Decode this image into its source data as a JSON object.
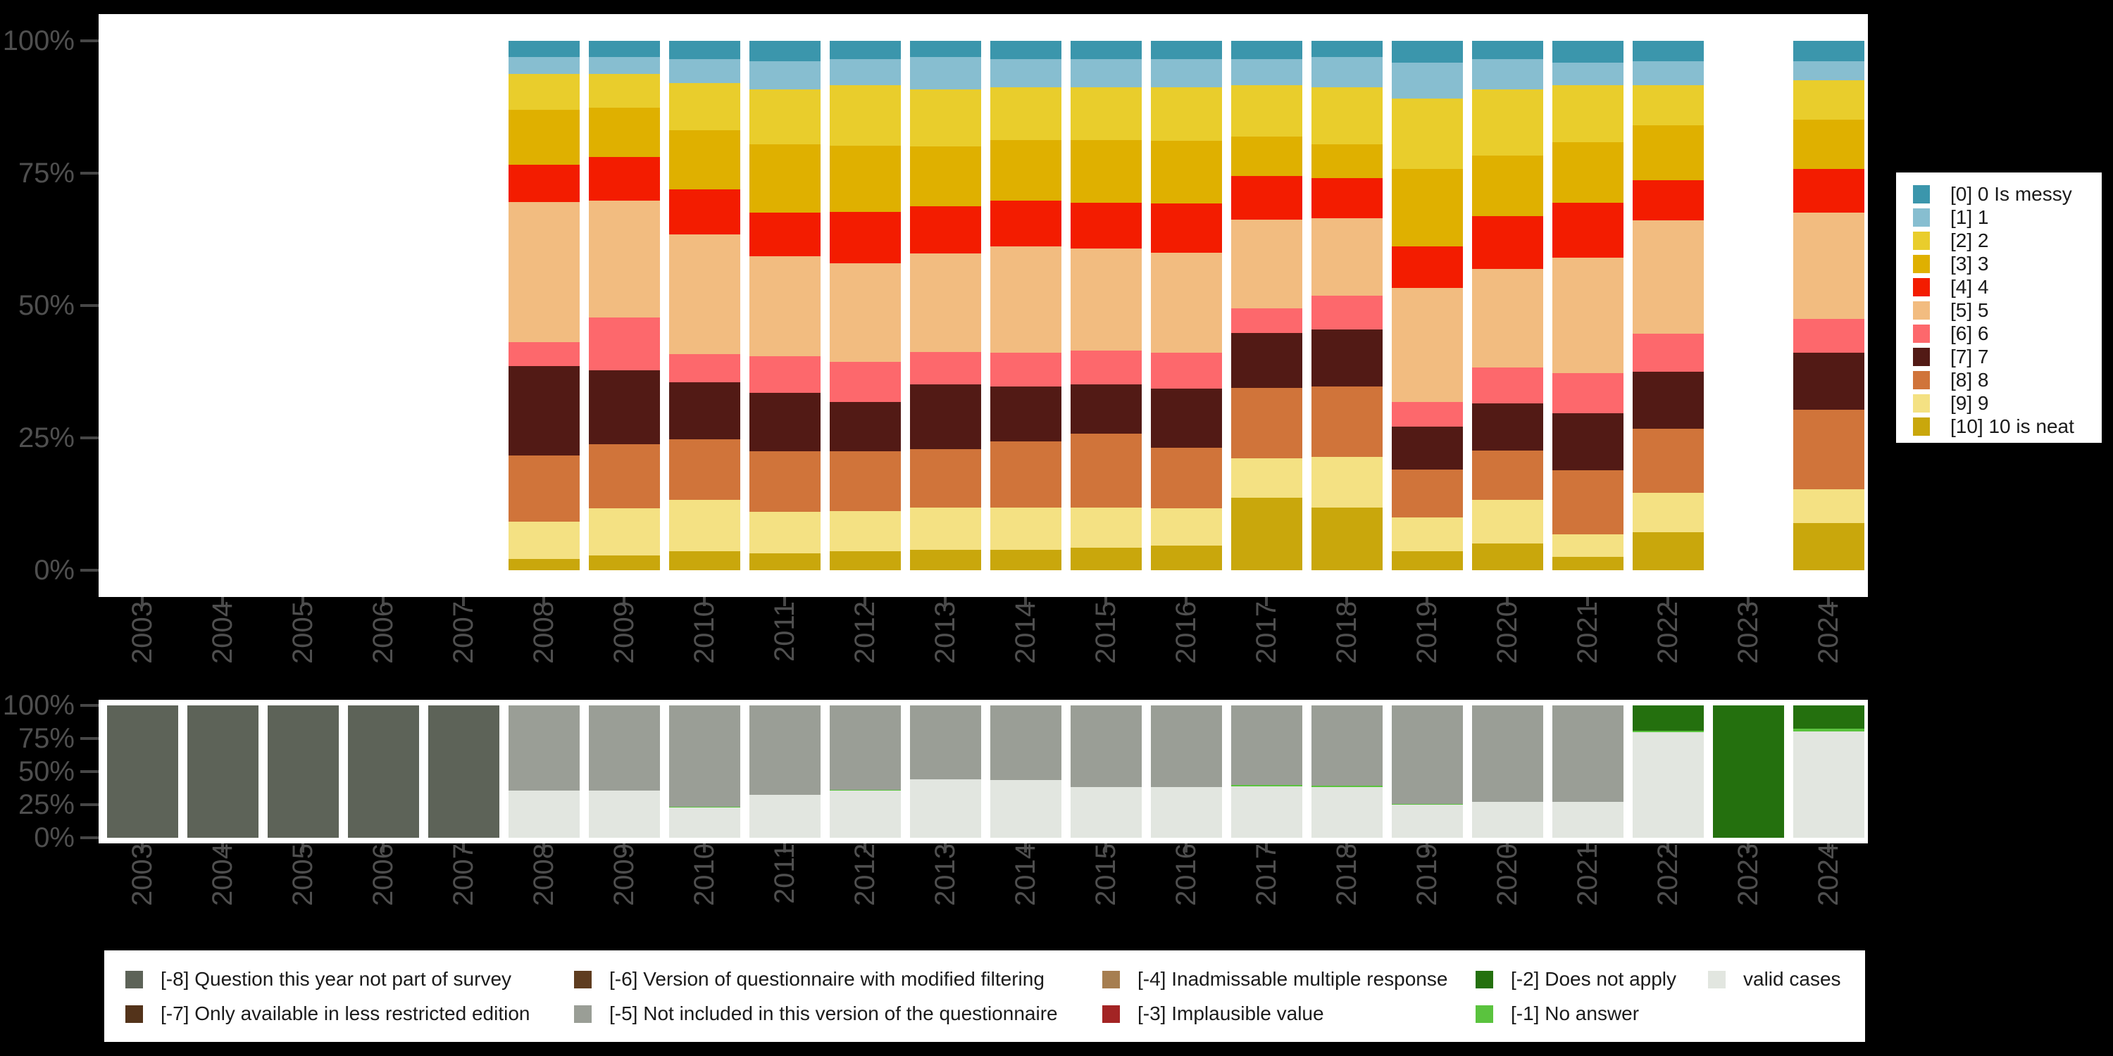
{
  "background_color": "#000000",
  "axis": {
    "tick_color": "#474747",
    "label_color": "#4f4f4f"
  },
  "years": [
    "2003",
    "2004",
    "2005",
    "2006",
    "2007",
    "2008",
    "2009",
    "2010",
    "2011",
    "2012",
    "2013",
    "2014",
    "2015",
    "2016",
    "2017",
    "2018",
    "2019",
    "2020",
    "2021",
    "2022",
    "2023",
    "2024"
  ],
  "ytick_labels": [
    "100%",
    "75%",
    "50%",
    "25%",
    "0%"
  ],
  "chart_data": [
    {
      "id": "responses",
      "type": "bar",
      "subtype": "stacked_percent",
      "xlabel": "",
      "ylabel": "",
      "ylim": [
        0,
        100
      ],
      "legend_position": "right",
      "categories": [
        {
          "label": "[0] 0 Is messy",
          "color": "#3b96ac"
        },
        {
          "label": "[1] 1",
          "color": "#87bed0"
        },
        {
          "label": "[2] 2",
          "color": "#e9cd2c"
        },
        {
          "label": "[3] 3",
          "color": "#dfb000"
        },
        {
          "label": "[4] 4",
          "color": "#f31c00"
        },
        {
          "label": "[5] 5",
          "color": "#f2bc80"
        },
        {
          "label": "[6] 6",
          "color": "#fd686c"
        },
        {
          "label": "[7] 7",
          "color": "#521a15"
        },
        {
          "label": "[8] 8",
          "color": "#d0743a"
        },
        {
          "label": "[9] 9",
          "color": "#f4e183"
        },
        {
          "label": "[10] 10 is neat",
          "color": "#c9a70c"
        }
      ],
      "values_by_year": {
        "2008": [
          3.1,
          3.2,
          6.8,
          10.3,
          7.1,
          26.4,
          4.6,
          16.8,
          12.5,
          7.1,
          2.1
        ],
        "2009": [
          3.1,
          3.2,
          6.4,
          9.3,
          8.2,
          22.1,
          10.0,
          13.9,
          12.1,
          8.9,
          2.8
        ],
        "2010": [
          3.4,
          4.6,
          8.9,
          11.1,
          8.6,
          22.5,
          5.4,
          10.7,
          11.4,
          9.7,
          3.6
        ],
        "2011": [
          3.8,
          5.4,
          10.4,
          12.9,
          8.2,
          19.0,
          6.8,
          11.1,
          11.4,
          7.9,
          3.2
        ],
        "2012": [
          3.4,
          5.0,
          11.4,
          12.5,
          9.7,
          18.6,
          7.5,
          9.3,
          11.4,
          7.5,
          3.6
        ],
        "2013": [
          3.1,
          6.1,
          10.7,
          11.4,
          8.9,
          18.6,
          6.1,
          12.2,
          11.1,
          7.9,
          3.9
        ],
        "2014": [
          3.4,
          5.4,
          10.0,
          11.4,
          8.6,
          20.0,
          6.4,
          10.4,
          12.5,
          7.9,
          3.9
        ],
        "2015": [
          3.4,
          5.4,
          10.0,
          11.8,
          8.6,
          19.3,
          6.4,
          9.3,
          13.9,
          7.5,
          4.3
        ],
        "2016": [
          3.4,
          5.4,
          10.0,
          11.8,
          9.3,
          18.9,
          6.8,
          11.1,
          11.4,
          7.1,
          4.6
        ],
        "2017": [
          3.4,
          5.0,
          9.6,
          7.5,
          8.2,
          16.8,
          4.6,
          10.4,
          13.2,
          7.5,
          13.6
        ],
        "2018": [
          3.1,
          5.7,
          10.7,
          6.4,
          7.5,
          14.6,
          6.4,
          10.7,
          13.2,
          9.6,
          11.8
        ],
        "2019": [
          4.1,
          6.8,
          13.2,
          14.6,
          7.9,
          21.4,
          4.6,
          8.2,
          8.9,
          6.4,
          3.6
        ],
        "2020": [
          3.4,
          5.7,
          12.5,
          11.4,
          10.0,
          18.6,
          6.8,
          8.9,
          9.3,
          8.2,
          5.0
        ],
        "2021": [
          4.1,
          4.3,
          10.7,
          11.4,
          10.4,
          21.8,
          7.5,
          10.7,
          12.1,
          4.3,
          2.5
        ],
        "2022": [
          3.8,
          4.6,
          7.5,
          10.4,
          7.5,
          21.4,
          7.1,
          10.7,
          12.1,
          7.5,
          7.1
        ],
        "2024": [
          3.8,
          3.6,
          7.5,
          9.3,
          8.2,
          20.0,
          6.4,
          10.7,
          15.0,
          6.4,
          8.9
        ]
      }
    },
    {
      "id": "missings",
      "type": "bar",
      "subtype": "stacked_percent",
      "xlabel": "",
      "ylabel": "",
      "ylim": [
        0,
        100
      ],
      "legend_position": "bottom",
      "categories": [
        {
          "label": "[-8] Question this year not part of survey",
          "color": "#5d6358"
        },
        {
          "label": "[-7] Only available in less restricted edition",
          "color": "#53331a"
        },
        {
          "label": "[-6] Version of questionnaire with modified filtering",
          "color": "#5f3d20"
        },
        {
          "label": "[-5] Not included in this version of the questionnaire",
          "color": "#9a9e96"
        },
        {
          "label": "[-4] Inadmissable multiple response",
          "color": "#a67e50"
        },
        {
          "label": "[-3] Implausible value",
          "color": "#a32424"
        },
        {
          "label": "[-2] Does not apply",
          "color": "#24700e"
        },
        {
          "label": "[-1] No answer",
          "color": "#5ac33e"
        },
        {
          "label": "valid cases",
          "color": "#e2e6e0"
        }
      ],
      "values_by_year": {
        "2003": [
          100,
          0,
          0,
          0,
          0,
          0,
          0,
          0,
          0
        ],
        "2004": [
          100,
          0,
          0,
          0,
          0,
          0,
          0,
          0,
          0
        ],
        "2005": [
          100,
          0,
          0,
          0,
          0,
          0,
          0,
          0,
          0
        ],
        "2006": [
          100,
          0,
          0,
          0,
          0,
          0,
          0,
          0,
          0
        ],
        "2007": [
          100,
          0,
          0,
          0,
          0,
          0,
          0,
          0,
          0
        ],
        "2008": [
          0,
          0,
          0,
          64.5,
          0,
          0,
          0,
          0,
          35.5
        ],
        "2009": [
          0,
          0,
          0,
          64.5,
          0,
          0,
          0,
          0,
          35.5
        ],
        "2010": [
          0,
          0,
          0,
          76.5,
          0,
          0,
          0,
          0.7,
          22.8
        ],
        "2011": [
          0,
          0,
          0,
          67.7,
          0,
          0,
          0,
          0,
          32.3
        ],
        "2012": [
          0,
          0,
          0,
          63.7,
          0,
          0,
          0,
          0.7,
          35.6
        ],
        "2013": [
          0,
          0,
          0,
          55.6,
          0,
          0,
          0,
          0,
          44.4
        ],
        "2014": [
          0,
          0,
          0,
          56.5,
          0,
          0,
          0,
          0,
          43.5
        ],
        "2015": [
          0,
          0,
          0,
          61.8,
          0,
          0,
          0,
          0,
          38.2
        ],
        "2016": [
          0,
          0,
          0,
          61.5,
          0,
          0,
          0,
          0,
          38.5
        ],
        "2017": [
          0,
          0,
          0,
          60.0,
          0,
          0,
          0,
          1.0,
          39.0
        ],
        "2018": [
          0,
          0,
          0,
          60.8,
          0,
          0,
          0,
          0.7,
          38.5
        ],
        "2019": [
          0,
          0,
          0,
          74.5,
          0,
          0,
          0,
          0.6,
          24.9
        ],
        "2020": [
          0,
          0,
          0,
          73.0,
          0,
          0,
          0,
          0,
          27.0
        ],
        "2021": [
          0,
          0,
          0,
          73.0,
          0,
          0,
          0,
          0,
          27.0
        ],
        "2022": [
          0,
          0,
          0,
          0,
          0,
          0,
          19.0,
          1.2,
          79.8
        ],
        "2023": [
          0,
          0,
          0,
          0,
          0,
          0,
          100,
          0,
          0
        ],
        "2024": [
          0,
          0,
          0,
          0,
          0,
          0,
          17.5,
          2.0,
          80.5
        ]
      }
    }
  ]
}
